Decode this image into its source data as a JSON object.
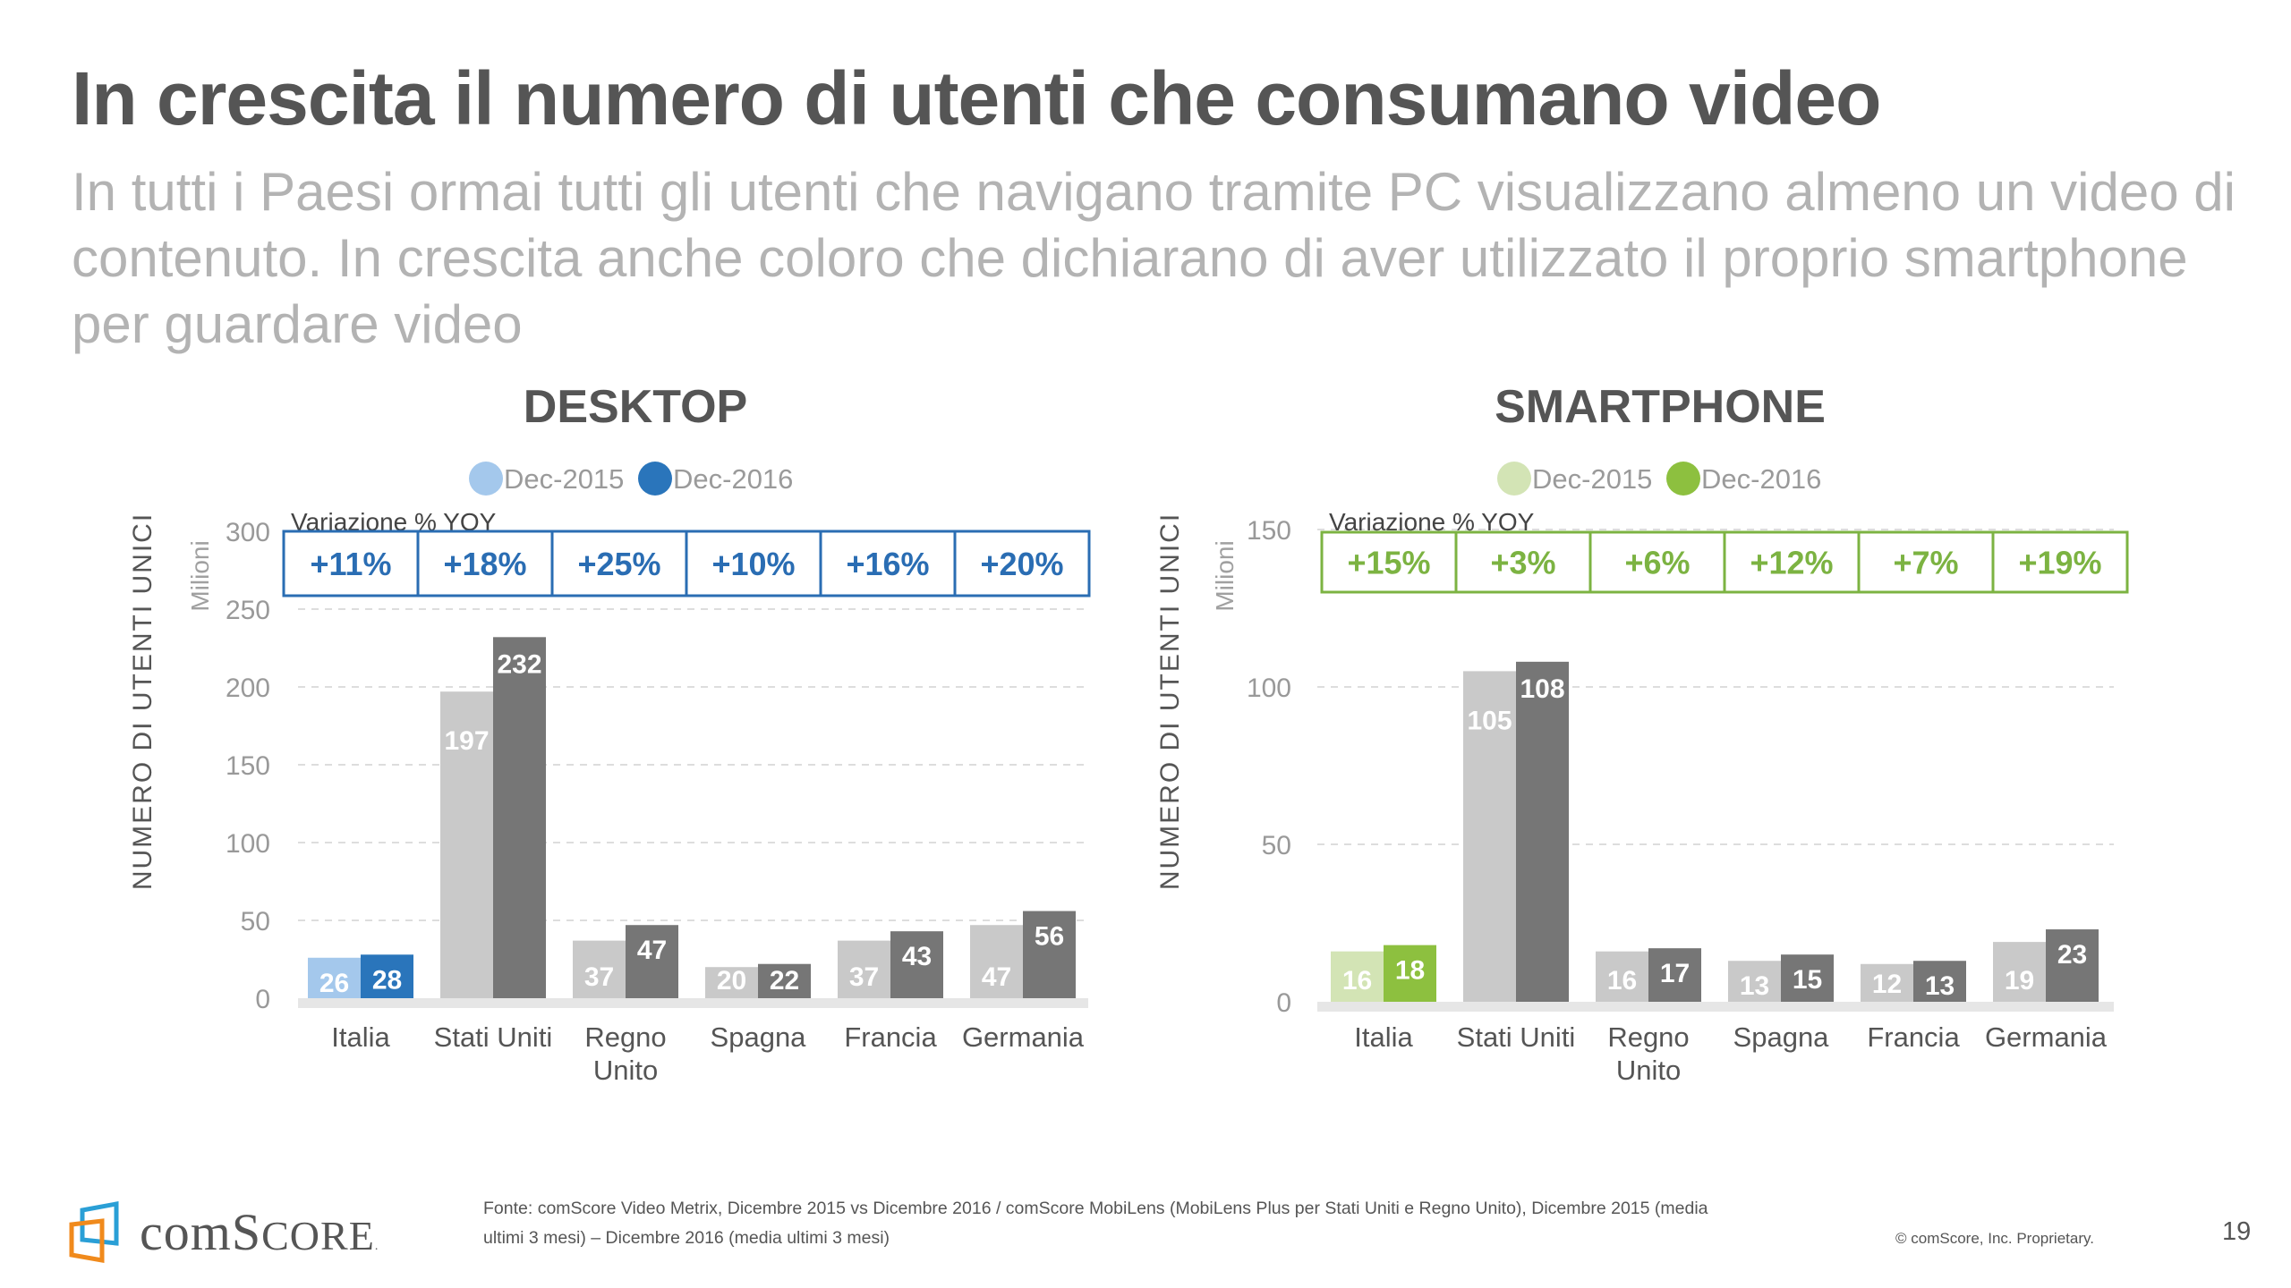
{
  "header": {
    "title": "In crescita il numero di utenti che consumano video",
    "subtitle": "In tutti i Paesi ormai tutti gli utenti che navigano tramite PC visualizzano almeno un video di contenuto. In crescita anche coloro che dichiarano di aver utilizzato il proprio smartphone per guardare video"
  },
  "footer": {
    "logo_text_lower": "com",
    "logo_text_upper": "Score",
    "logo_mark": ".",
    "source_line1": "Fonte: comScore Video Metrix, Dicembre 2015 vs Dicembre 2016 / comScore MobiLens (MobiLens Plus per Stati Uniti e Regno Unito), Dicembre 2015 (media",
    "source_line2": "ultimi 3 mesi) – Dicembre 2016 (media ultimi 3 mesi)",
    "copyright": "© comScore, Inc. Proprietary.",
    "page_number": "19"
  },
  "colors": {
    "desktop_2015": "#a4c8ec",
    "desktop_2016": "#2a75bb",
    "smartphone_2015": "#d3e4b5",
    "smartphone_2016": "#8dc03f",
    "other_2015": "#c9c9c9",
    "other_2016": "#767676",
    "desktop_yoy": "#2a6db3",
    "smartphone_yoy": "#7cb342"
  },
  "chart_data": [
    {
      "type": "bar",
      "id": "desktop",
      "title": "DESKTOP",
      "ylabel": "NUMERO DI UTENTI UNICI",
      "unit_label": "Milioni",
      "xlabel": "",
      "ylim": [
        0,
        300
      ],
      "yticks": [
        0,
        50,
        100,
        150,
        200,
        250,
        300
      ],
      "grid": true,
      "legend": "top-center",
      "categories": [
        "Italia",
        "Stati Uniti",
        "Regno Unito",
        "Spagna",
        "Francia",
        "Germania"
      ],
      "category_lines": [
        [
          "Italia"
        ],
        [
          "Stati Uniti"
        ],
        [
          "Regno",
          "Unito"
        ],
        [
          "Spagna"
        ],
        [
          "Francia"
        ],
        [
          "Germania"
        ]
      ],
      "series": [
        {
          "name": "Dec-2015",
          "values": [
            26,
            197,
            37,
            20,
            37,
            47
          ]
        },
        {
          "name": "Dec-2016",
          "values": [
            28,
            232,
            47,
            22,
            43,
            56
          ]
        }
      ],
      "highlight_category": "Italia",
      "annotation_label": "Variazione % YOY",
      "yoy_change": [
        "+11%",
        "+18%",
        "+25%",
        "+10%",
        "+16%",
        "+20%"
      ]
    },
    {
      "type": "bar",
      "id": "smartphone",
      "title": "SMARTPHONE",
      "ylabel": "NUMERO DI UTENTI UNICI",
      "unit_label": "Milioni",
      "xlabel": "",
      "ylim": [
        0,
        150
      ],
      "yticks": [
        0,
        50,
        100,
        150
      ],
      "grid": true,
      "legend": "top-center",
      "categories": [
        "Italia",
        "Stati Uniti",
        "Regno Unito",
        "Spagna",
        "Francia",
        "Germania"
      ],
      "category_lines": [
        [
          "Italia"
        ],
        [
          "Stati Uniti"
        ],
        [
          "Regno",
          "Unito"
        ],
        [
          "Spagna"
        ],
        [
          "Francia"
        ],
        [
          "Germania"
        ]
      ],
      "series": [
        {
          "name": "Dec-2015",
          "values": [
            16,
            105,
            16,
            13,
            12,
            19
          ]
        },
        {
          "name": "Dec-2016",
          "values": [
            18,
            108,
            17,
            15,
            13,
            23
          ]
        }
      ],
      "highlight_category": "Italia",
      "annotation_label": "Variazione % YOY",
      "yoy_change": [
        "+15%",
        "+3%",
        "+6%",
        "+12%",
        "+7%",
        "+19%"
      ]
    }
  ]
}
